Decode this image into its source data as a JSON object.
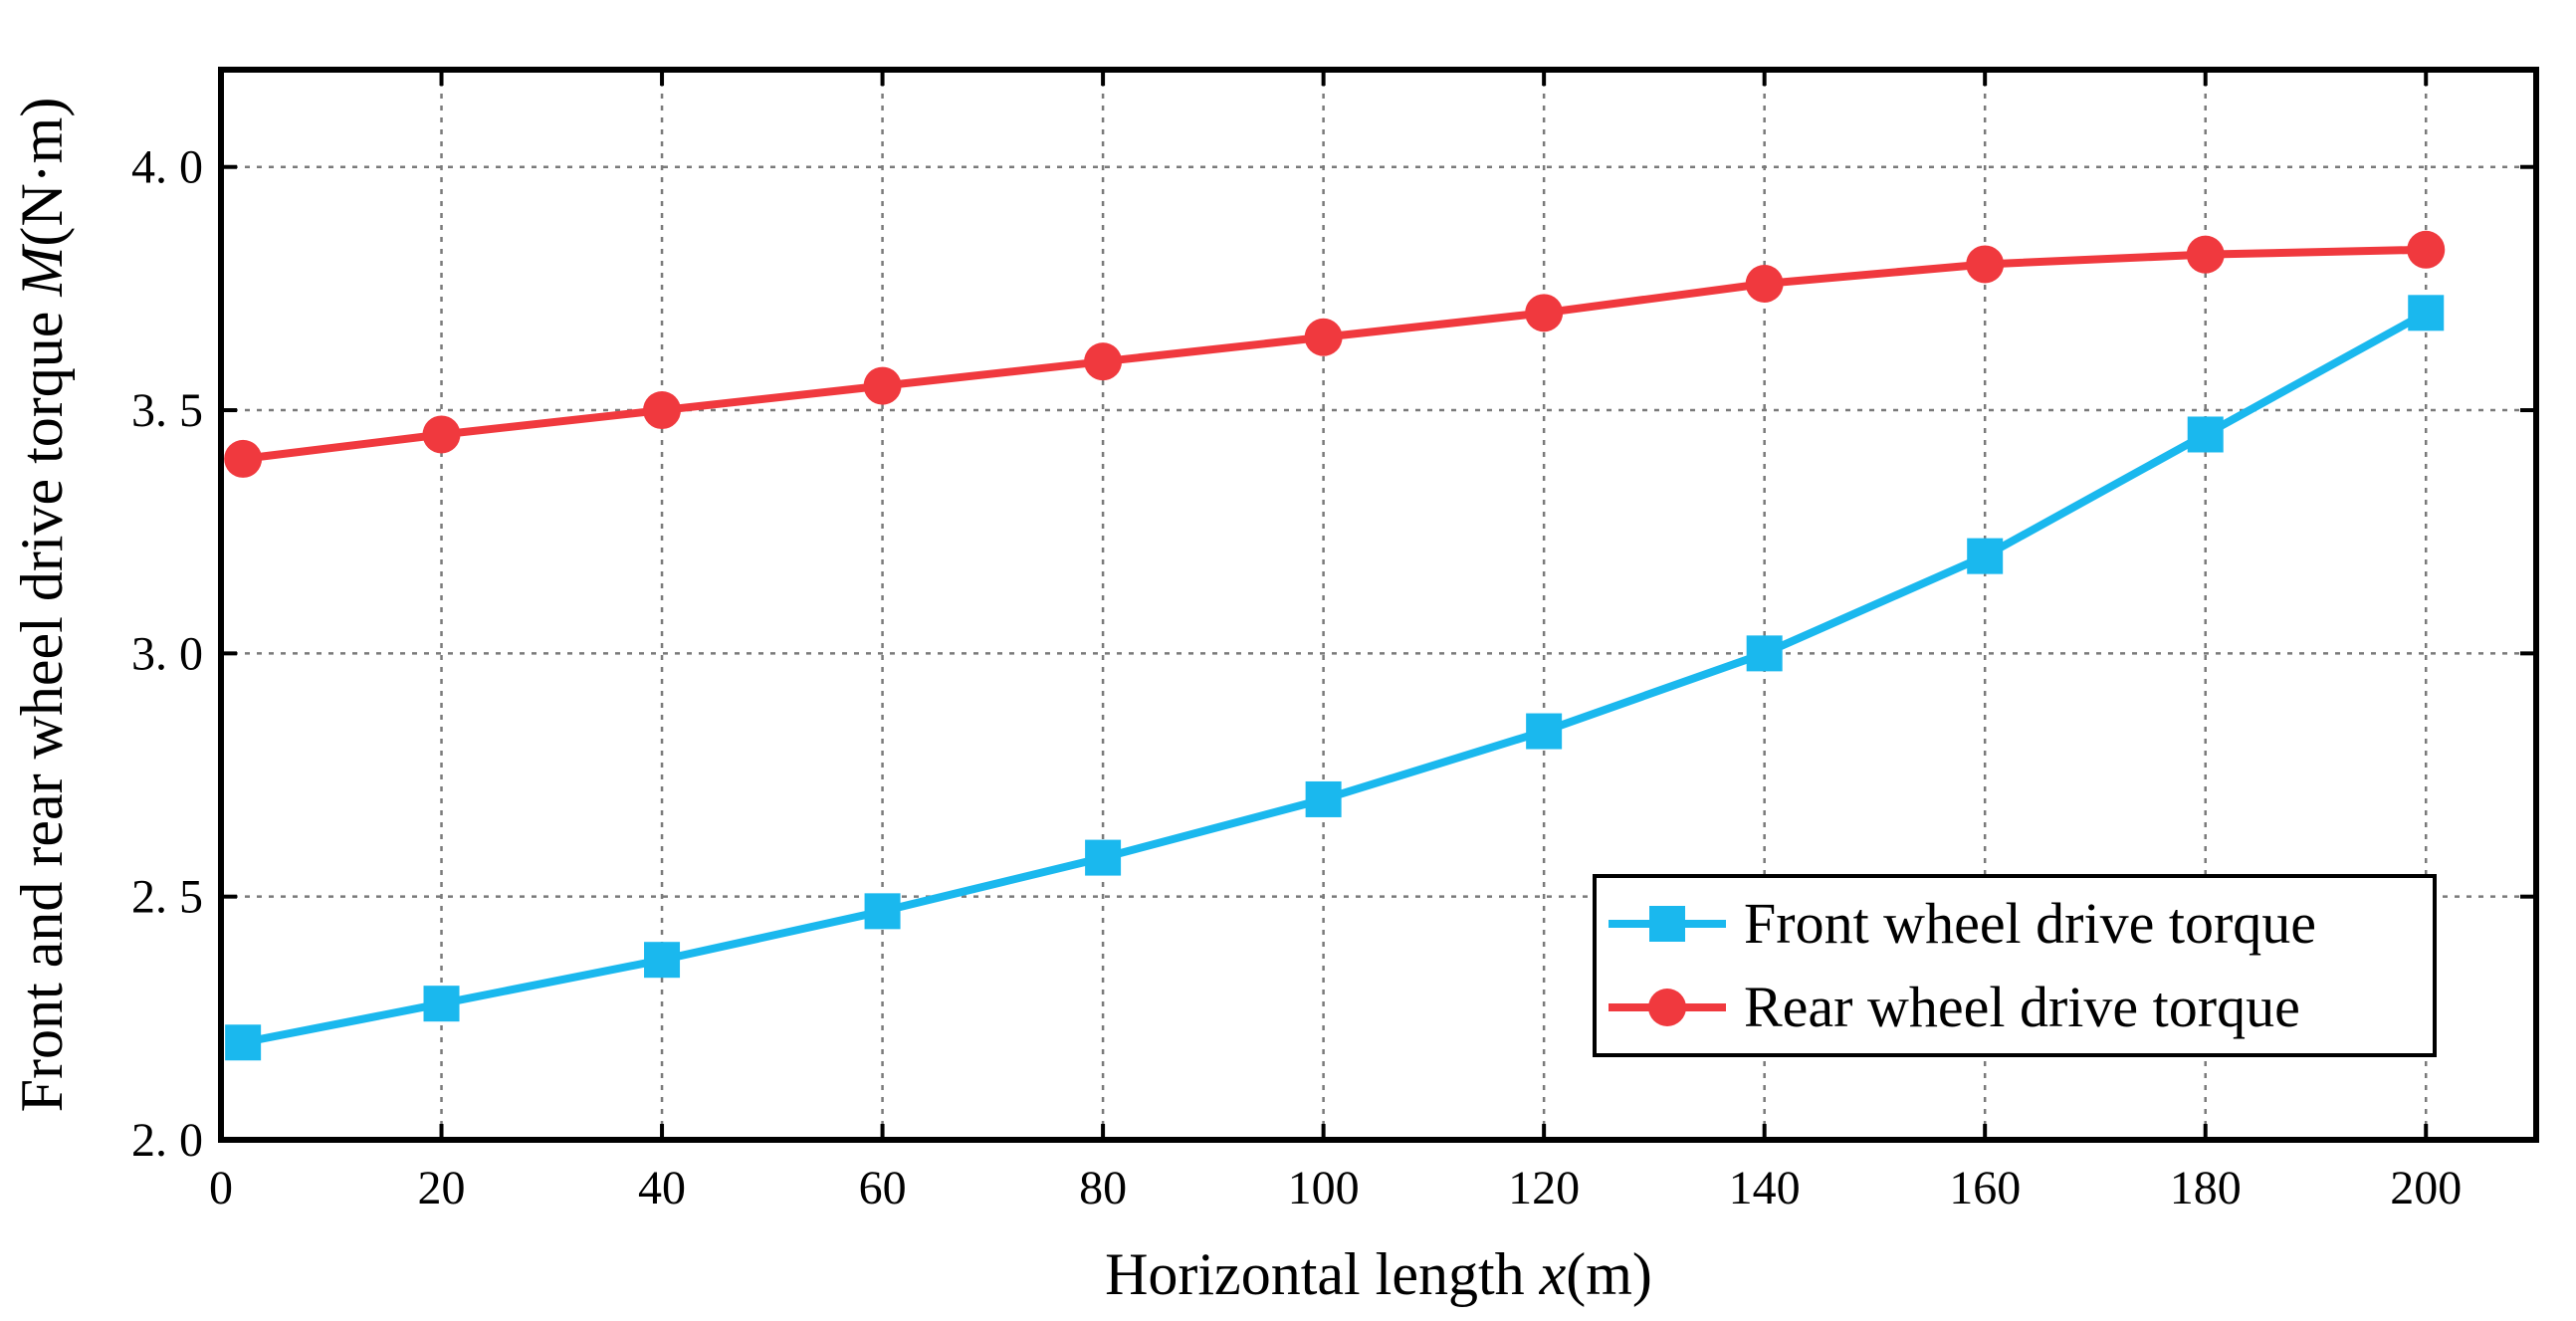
{
  "chart_data": {
    "type": "line",
    "title": "",
    "xlabel": {
      "prefix": "Horizontal length ",
      "variable": "x",
      "suffix": "(m)"
    },
    "ylabel": {
      "prefix": "Front and rear wheel drive torque ",
      "variable": "M",
      "suffix": "(N·m)"
    },
    "xlim": [
      0,
      210
    ],
    "ylim": [
      2.0,
      4.2
    ],
    "x_ticks": [
      0,
      20,
      40,
      60,
      80,
      100,
      120,
      140,
      160,
      180,
      200
    ],
    "y_ticks": [
      2.0,
      2.5,
      3.0,
      3.5,
      4.0
    ],
    "y_tick_labels": [
      "2. 0",
      "2. 5",
      "3. 0",
      "3. 5",
      "4. 0"
    ],
    "grid": true,
    "legend_position": "lower-right",
    "series": [
      {
        "name": "Front wheel drive torque",
        "color": "#1ab8ee",
        "marker": "square",
        "x": [
          2,
          20,
          40,
          60,
          80,
          100,
          120,
          140,
          160,
          180,
          200
        ],
        "values": [
          2.2,
          2.28,
          2.37,
          2.47,
          2.58,
          2.7,
          2.84,
          3.0,
          3.2,
          3.45,
          3.7
        ]
      },
      {
        "name": "Rear wheel drive torque",
        "color": "#f0393e",
        "marker": "circle",
        "x": [
          2,
          20,
          40,
          60,
          80,
          100,
          120,
          140,
          160,
          180,
          200
        ],
        "values": [
          3.4,
          3.45,
          3.5,
          3.55,
          3.6,
          3.65,
          3.7,
          3.76,
          3.8,
          3.82,
          3.83
        ]
      }
    ]
  }
}
